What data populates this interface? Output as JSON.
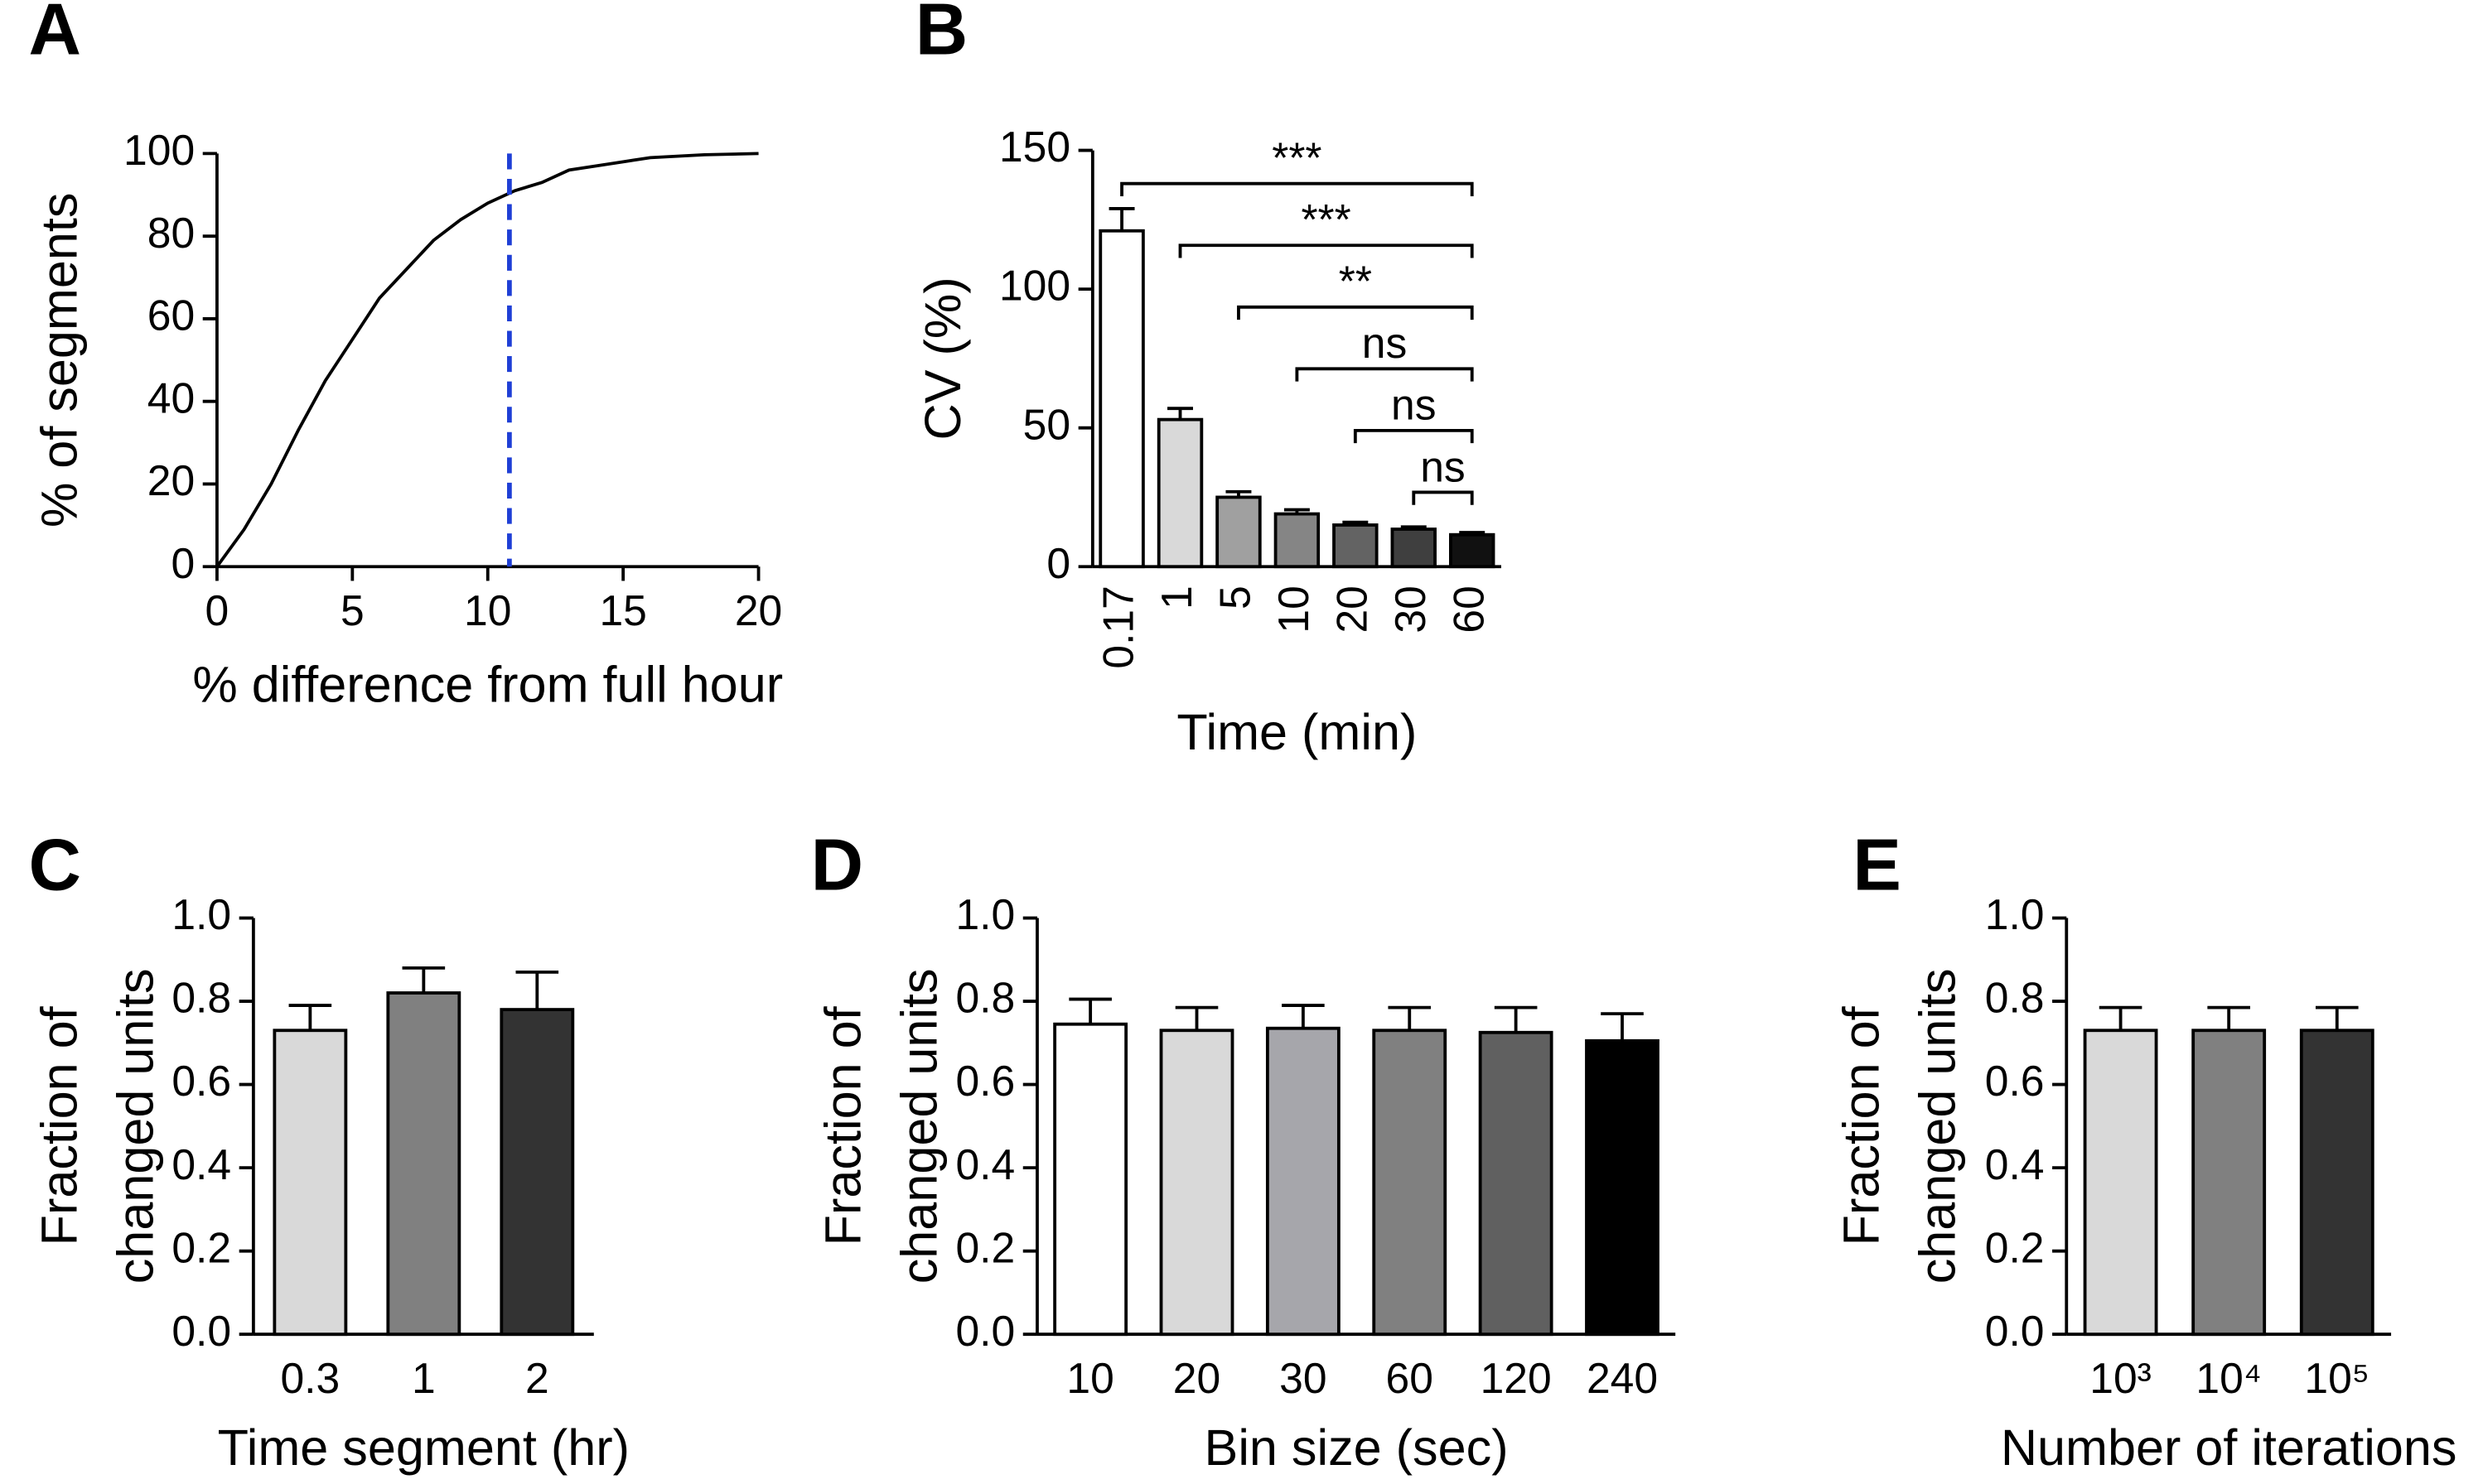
{
  "chart_data": [
    {
      "type": "line",
      "panel": "A",
      "xlabel": "% difference from full hour",
      "ylabel": "% of segments",
      "x": [
        0,
        1,
        2,
        3,
        4,
        5,
        6,
        7,
        8,
        9,
        10,
        11,
        12,
        13,
        14,
        15,
        16,
        18,
        20
      ],
      "values": [
        0,
        9,
        20,
        33,
        45,
        55,
        65,
        72,
        79,
        84,
        88,
        91,
        93,
        96,
        97,
        98,
        99,
        99.7,
        100
      ],
      "color": "#000000",
      "xlim": [
        0,
        20
      ],
      "xticks": [
        0,
        5,
        10,
        15,
        20
      ],
      "ylim": [
        0,
        100
      ],
      "yticks": [
        0,
        20,
        40,
        60,
        80,
        100
      ],
      "reference_line": {
        "x": 10.8,
        "color": "#1f3fd6"
      }
    },
    {
      "type": "bar",
      "panel": "B",
      "xlabel": "Time (min)",
      "ylabel": "CV (%)",
      "categories": [
        "0.17",
        "1",
        "5",
        "10",
        "20",
        "30",
        "60"
      ],
      "values": [
        121,
        53,
        25,
        19,
        15,
        13.5,
        11.5
      ],
      "errors": [
        8,
        4,
        2,
        1.5,
        1,
        0.8,
        0.8
      ],
      "colors": [
        "#ffffff",
        "#d9d9d9",
        "#a0a0a0",
        "#858585",
        "#636363",
        "#3f3f3f",
        "#111111"
      ],
      "ylim": [
        0,
        150
      ],
      "yticks": [
        0,
        50,
        100,
        150
      ],
      "rotate_xticks": true,
      "comparisons": [
        {
          "groups": [
            "0.17",
            "60"
          ],
          "label": "***"
        },
        {
          "groups": [
            "1",
            "60"
          ],
          "label": "***"
        },
        {
          "groups": [
            "5",
            "60"
          ],
          "label": "**"
        },
        {
          "groups": [
            "10",
            "60"
          ],
          "label": "ns"
        },
        {
          "groups": [
            "20",
            "60"
          ],
          "label": "ns"
        },
        {
          "groups": [
            "30",
            "60"
          ],
          "label": "ns"
        }
      ]
    },
    {
      "type": "bar",
      "panel": "C",
      "xlabel": "Time segment (hr)",
      "ylabel": [
        "Fraction of",
        "changed units"
      ],
      "categories": [
        "0.3",
        "1",
        "2"
      ],
      "values": [
        0.73,
        0.82,
        0.78
      ],
      "errors": [
        0.06,
        0.06,
        0.09
      ],
      "colors": [
        "#d9d9d9",
        "#808080",
        "#333333"
      ],
      "ylim": [
        0,
        1
      ],
      "yticks": [
        {
          "value": 0,
          "label": "0.0"
        },
        0.2,
        0.4,
        0.6,
        0.8,
        {
          "value": 1,
          "label": "1.0"
        }
      ]
    },
    {
      "type": "bar",
      "panel": "D",
      "xlabel": "Bin size (sec)",
      "ylabel": [
        "Fraction of",
        "changed units"
      ],
      "categories": [
        "10",
        "20",
        "30",
        "60",
        "120",
        "240"
      ],
      "values": [
        0.745,
        0.73,
        0.735,
        0.73,
        0.725,
        0.705
      ],
      "errors": [
        0.06,
        0.055,
        0.055,
        0.055,
        0.06,
        0.065
      ],
      "colors": [
        "#ffffff",
        "#d9d9d9",
        "#a6a6ab",
        "#808080",
        "#606060",
        "#000000"
      ],
      "ylim": [
        0,
        1
      ],
      "yticks": [
        {
          "value": 0,
          "label": "0.0"
        },
        0.2,
        0.4,
        0.6,
        0.8,
        {
          "value": 1,
          "label": "1.0"
        }
      ]
    },
    {
      "type": "bar",
      "panel": "E",
      "xlabel": "Number of iterations",
      "ylabel": [
        "Fraction of",
        "changed units"
      ],
      "categories": [
        "10³",
        "10⁴",
        "10⁵"
      ],
      "values": [
        0.73,
        0.73,
        0.73
      ],
      "errors": [
        0.055,
        0.055,
        0.055
      ],
      "colors": [
        "#d9d9d9",
        "#808080",
        "#333333"
      ],
      "ylim": [
        0,
        1
      ],
      "yticks": [
        {
          "value": 0,
          "label": "0.0"
        },
        0.2,
        0.4,
        0.6,
        0.8,
        {
          "value": 1,
          "label": "1.0"
        }
      ]
    }
  ]
}
